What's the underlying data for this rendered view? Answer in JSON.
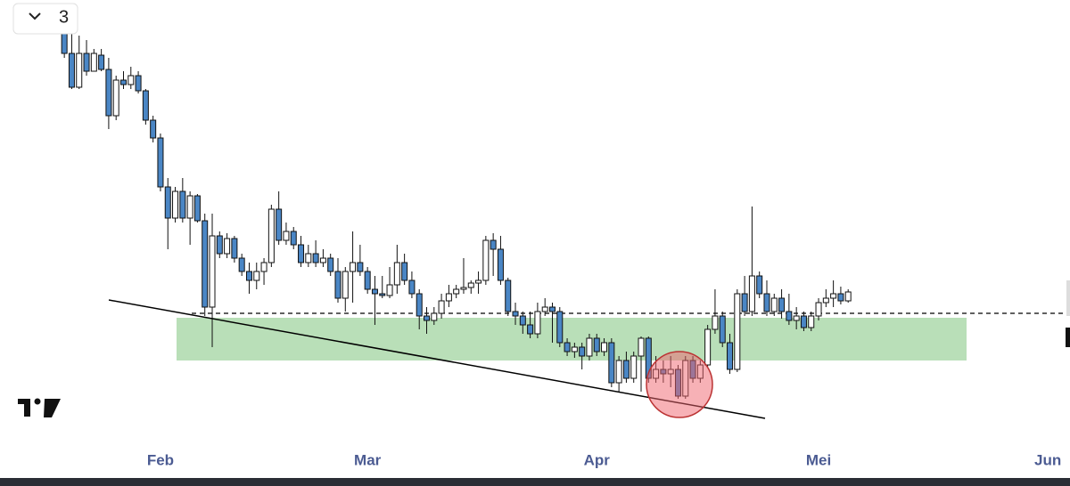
{
  "chart_data": {
    "type": "candlestick",
    "button_label": "3",
    "xlim": [
      10.3,
      155
    ],
    "xticks": [
      {
        "value": 32,
        "label": "Feb"
      },
      {
        "value": 60,
        "label": "Mar"
      },
      {
        "value": 91,
        "label": "Apr"
      },
      {
        "value": 121,
        "label": "Mei"
      },
      {
        "value": 152,
        "label": "Jun"
      }
    ],
    "ylim": [
      0,
      500
    ],
    "up_color": "#ffffff",
    "down_color": "#4a86c5",
    "x": [
      19,
      20,
      21,
      22,
      23,
      24,
      25,
      26,
      27,
      28,
      29,
      30,
      31,
      32,
      33,
      34,
      35,
      36,
      37,
      38,
      39,
      40,
      41,
      42,
      43,
      44,
      45,
      46,
      47,
      48,
      49,
      50,
      51,
      52,
      53,
      54,
      55,
      56,
      57,
      58,
      59,
      60,
      61,
      62,
      63,
      64,
      65,
      66,
      67,
      68,
      69,
      70,
      71,
      72,
      73,
      74,
      75,
      76,
      77,
      78,
      79,
      80,
      81,
      82,
      83,
      84,
      85,
      86,
      87,
      88,
      89,
      90,
      91,
      92,
      93,
      94,
      95,
      96,
      97,
      98,
      99,
      100,
      101,
      102,
      103,
      104,
      105,
      106,
      107,
      108,
      109,
      110,
      111,
      112,
      113,
      114,
      115,
      116,
      117,
      118,
      119,
      120,
      121,
      122,
      123,
      124,
      125
    ],
    "ohlc": [
      [
        465,
        485,
        435,
        440
      ],
      [
        440,
        470,
        400,
        402
      ],
      [
        402,
        460,
        400,
        440
      ],
      [
        440,
        455,
        415,
        420
      ],
      [
        420,
        445,
        420,
        440
      ],
      [
        438,
        445,
        420,
        422
      ],
      [
        422,
        435,
        355,
        370
      ],
      [
        370,
        415,
        365,
        410
      ],
      [
        410,
        420,
        400,
        405
      ],
      [
        405,
        425,
        400,
        415
      ],
      [
        415,
        420,
        395,
        398
      ],
      [
        398,
        400,
        360,
        365
      ],
      [
        365,
        370,
        340,
        345
      ],
      [
        345,
        350,
        285,
        290
      ],
      [
        290,
        300,
        220,
        255
      ],
      [
        255,
        290,
        250,
        285
      ],
      [
        285,
        300,
        250,
        255
      ],
      [
        255,
        285,
        225,
        280
      ],
      [
        280,
        282,
        250,
        252
      ],
      [
        252,
        260,
        145,
        155
      ],
      [
        155,
        260,
        110,
        235
      ],
      [
        235,
        240,
        210,
        215
      ],
      [
        215,
        238,
        210,
        232
      ],
      [
        232,
        235,
        205,
        210
      ],
      [
        210,
        215,
        190,
        195
      ],
      [
        195,
        205,
        170,
        185
      ],
      [
        185,
        205,
        175,
        195
      ],
      [
        195,
        210,
        180,
        205
      ],
      [
        205,
        270,
        200,
        265
      ],
      [
        265,
        285,
        225,
        230
      ],
      [
        230,
        250,
        225,
        240
      ],
      [
        240,
        245,
        220,
        225
      ],
      [
        225,
        235,
        200,
        205
      ],
      [
        205,
        225,
        200,
        215
      ],
      [
        215,
        230,
        200,
        205
      ],
      [
        205,
        220,
        200,
        210
      ],
      [
        210,
        215,
        190,
        195
      ],
      [
        195,
        210,
        160,
        165
      ],
      [
        165,
        200,
        150,
        195
      ],
      [
        195,
        240,
        160,
        205
      ],
      [
        205,
        225,
        190,
        195
      ],
      [
        195,
        200,
        170,
        175
      ],
      [
        175,
        190,
        135,
        170
      ],
      [
        170,
        190,
        165,
        168
      ],
      [
        168,
        200,
        165,
        180
      ],
      [
        180,
        225,
        170,
        205
      ],
      [
        205,
        215,
        180,
        185
      ],
      [
        185,
        195,
        165,
        170
      ],
      [
        170,
        175,
        130,
        145
      ],
      [
        145,
        155,
        125,
        140
      ],
      [
        140,
        155,
        135,
        148
      ],
      [
        148,
        170,
        142,
        162
      ],
      [
        162,
        180,
        155,
        170
      ],
      [
        170,
        180,
        165,
        175
      ],
      [
        175,
        210,
        170,
        177
      ],
      [
        177,
        185,
        170,
        182
      ],
      [
        182,
        195,
        170,
        185
      ],
      [
        185,
        235,
        180,
        230
      ],
      [
        230,
        238,
        190,
        220
      ],
      [
        220,
        235,
        180,
        185
      ],
      [
        185,
        188,
        145,
        150
      ],
      [
        150,
        160,
        135,
        145
      ],
      [
        145,
        150,
        125,
        135
      ],
      [
        135,
        150,
        120,
        125
      ],
      [
        125,
        160,
        120,
        150
      ],
      [
        150,
        165,
        145,
        155
      ],
      [
        155,
        160,
        115,
        150
      ],
      [
        150,
        155,
        110,
        115
      ],
      [
        115,
        120,
        100,
        105
      ],
      [
        105,
        115,
        98,
        110
      ],
      [
        110,
        115,
        85,
        100
      ],
      [
        100,
        125,
        95,
        120
      ],
      [
        120,
        125,
        100,
        105
      ],
      [
        105,
        120,
        100,
        115
      ],
      [
        115,
        120,
        65,
        70
      ],
      [
        70,
        100,
        60,
        95
      ],
      [
        95,
        105,
        70,
        75
      ],
      [
        75,
        105,
        70,
        100
      ],
      [
        100,
        122,
        60,
        120
      ],
      [
        120,
        122,
        70,
        75
      ],
      [
        75,
        100,
        70,
        85
      ],
      [
        85,
        95,
        70,
        80
      ],
      [
        80,
        100,
        65,
        85
      ],
      [
        85,
        90,
        52,
        55
      ],
      [
        55,
        100,
        52,
        95
      ],
      [
        95,
        100,
        70,
        75
      ],
      [
        75,
        95,
        70,
        90
      ],
      [
        90,
        135,
        88,
        130
      ],
      [
        130,
        175,
        125,
        145
      ],
      [
        145,
        150,
        110,
        115
      ],
      [
        115,
        125,
        80,
        85
      ],
      [
        85,
        175,
        82,
        170
      ],
      [
        170,
        190,
        145,
        150
      ],
      [
        150,
        268,
        145,
        190
      ],
      [
        190,
        195,
        165,
        170
      ],
      [
        170,
        185,
        145,
        150
      ],
      [
        150,
        170,
        145,
        165
      ],
      [
        165,
        175,
        142,
        150
      ],
      [
        150,
        170,
        135,
        140
      ],
      [
        140,
        155,
        130,
        145
      ],
      [
        145,
        150,
        128,
        132
      ],
      [
        132,
        150,
        128,
        145
      ],
      [
        145,
        165,
        140,
        160
      ],
      [
        160,
        175,
        155,
        165
      ],
      [
        165,
        185,
        155,
        170
      ],
      [
        170,
        178,
        158,
        162
      ],
      [
        162,
        175,
        160,
        172
      ]
    ]
  }
}
